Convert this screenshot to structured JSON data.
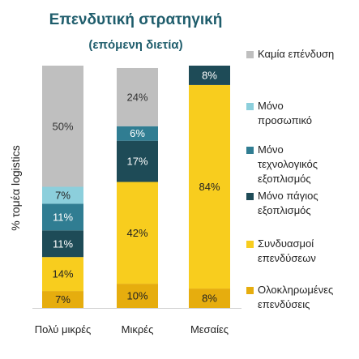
{
  "chart_data": {
    "type": "bar",
    "stacked": true,
    "title": "Επενδυτική στρατηγική",
    "subtitle": "(επόμενη διετία)",
    "xlabel": "",
    "ylabel": "% τομέα logistics",
    "ylim": [
      0,
      100
    ],
    "grid": false,
    "legend_position": "right",
    "categories": [
      "Πολύ μικρές",
      "Μικρές",
      "Μεσαίες"
    ],
    "series": [
      {
        "name": "Ολοκληρωμένες επενδύσεις",
        "color": "#e6ad0e",
        "values": [
          7,
          10,
          8
        ],
        "labels": [
          "7%",
          "10%",
          "8%"
        ]
      },
      {
        "name": "Συνδυασμοί επενδύσεων",
        "color": "#f8cd1e",
        "values": [
          14,
          42,
          84
        ],
        "labels": [
          "14%",
          "42%",
          "84%"
        ]
      },
      {
        "name": "Μόνο πάγιος εξοπλισμός",
        "color": "#1e4b57",
        "values": [
          11,
          17,
          8
        ],
        "labels": [
          "11%",
          "17%",
          "8%"
        ]
      },
      {
        "name": "Μόνο τεχνολογικός εξοπλισμός",
        "color": "#307d92",
        "values": [
          11,
          6,
          0
        ],
        "labels": [
          "11%",
          "6%",
          ""
        ]
      },
      {
        "name": "Μόνο προσωπικό",
        "color": "#8ccfdc",
        "values": [
          7,
          0,
          0
        ],
        "labels": [
          "7%",
          "",
          ""
        ]
      },
      {
        "name": "Καμία επένδυση",
        "color": "#bfbfbf",
        "values": [
          50,
          24,
          0
        ],
        "labels": [
          "50%",
          "24%",
          ""
        ]
      }
    ],
    "label_colors": {
      "#e6ad0e": "#222222",
      "#f8cd1e": "#222222",
      "#1e4b57": "#ffffff",
      "#307d92": "#ffffff",
      "#8ccfdc": "#222222",
      "#bfbfbf": "#333333"
    },
    "legend_order": [
      "Καμία επένδυση",
      "Μόνο προσωπικό",
      "Μόνο τεχνολογικός εξοπλισμός",
      "Μόνο πάγιος εξοπλισμός",
      "Συνδυασμοί επενδύσεων",
      "Ολοκληρωμένες επενδύσεις"
    ],
    "legend_lines": {
      "Καμία επένδυση": [
        "Καμία επένδυση"
      ],
      "Μόνο προσωπικό": [
        "Μόνο",
        "προσωπικό"
      ],
      "Μόνο τεχνολογικός εξοπλισμός": [
        "Μόνο",
        "τεχνολογικός",
        "εξοπλισμός"
      ],
      "Μόνο πάγιος εξοπλισμός": [
        "Μόνο πάγιος",
        "εξοπλισμός"
      ],
      "Συνδυασμοί επενδύσεων": [
        "Συνδυασμοί",
        "επενδύσεων"
      ],
      "Ολοκληρωμένες επενδύσεις": [
        "Ολοκληρωμένες",
        "επενδύσεις"
      ]
    }
  }
}
